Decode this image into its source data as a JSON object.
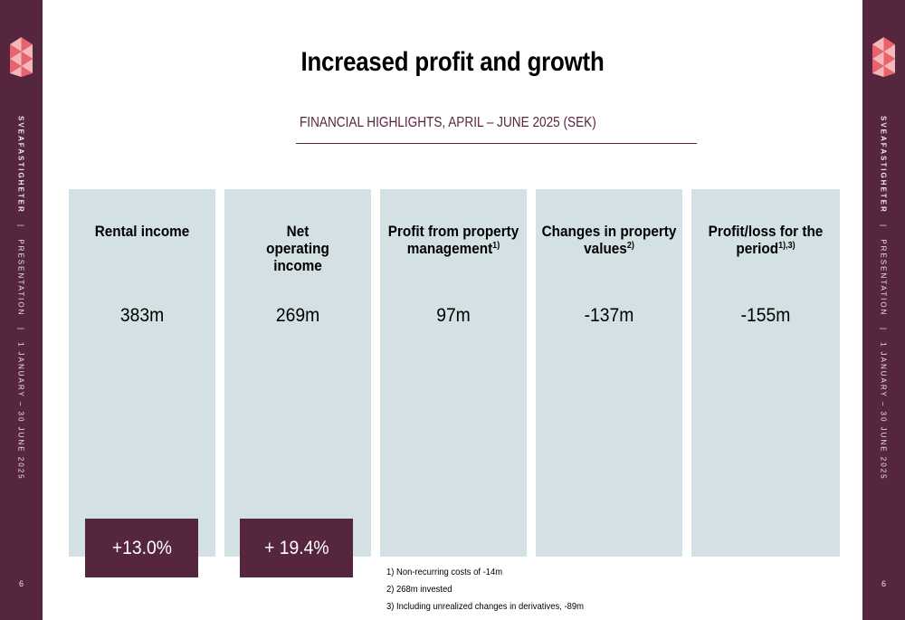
{
  "sidebar": {
    "brand": "SVEAFASTIGHETER",
    "separator": "|",
    "section": "PRESENTATION",
    "period": "1 JANUARY – 30 JUNE 2025",
    "page_number": "6"
  },
  "header": {
    "title": "Increased profit and growth",
    "subtitle": "FINANCIAL HIGHLIGHTS, APRIL – JUNE 2025 (SEK)"
  },
  "cards": [
    {
      "title": "Rental income",
      "note": "",
      "value": "383m"
    },
    {
      "title": "Net operating income",
      "note": "",
      "value": "269m"
    },
    {
      "title": "Profit from property management",
      "note": "1)",
      "value": "97m"
    },
    {
      "title": "Changes in property values",
      "note": "2)",
      "value": "-137m"
    },
    {
      "title": "Profit/loss for the period",
      "note": "1),3)",
      "value": "-155m"
    }
  ],
  "badges": [
    {
      "text": "+13.0%"
    },
    {
      "text": "+ 19.4%"
    }
  ],
  "footnotes": [
    "1) Non-recurring costs of -14m",
    "2) 268m invested",
    "3) Including unrealized changes in derivatives, -89m"
  ],
  "colors": {
    "brand_purple": "#56263f",
    "card_background": "#d3e1e5",
    "logo_red": "#e8636a",
    "logo_pink": "#f4b7bb"
  }
}
